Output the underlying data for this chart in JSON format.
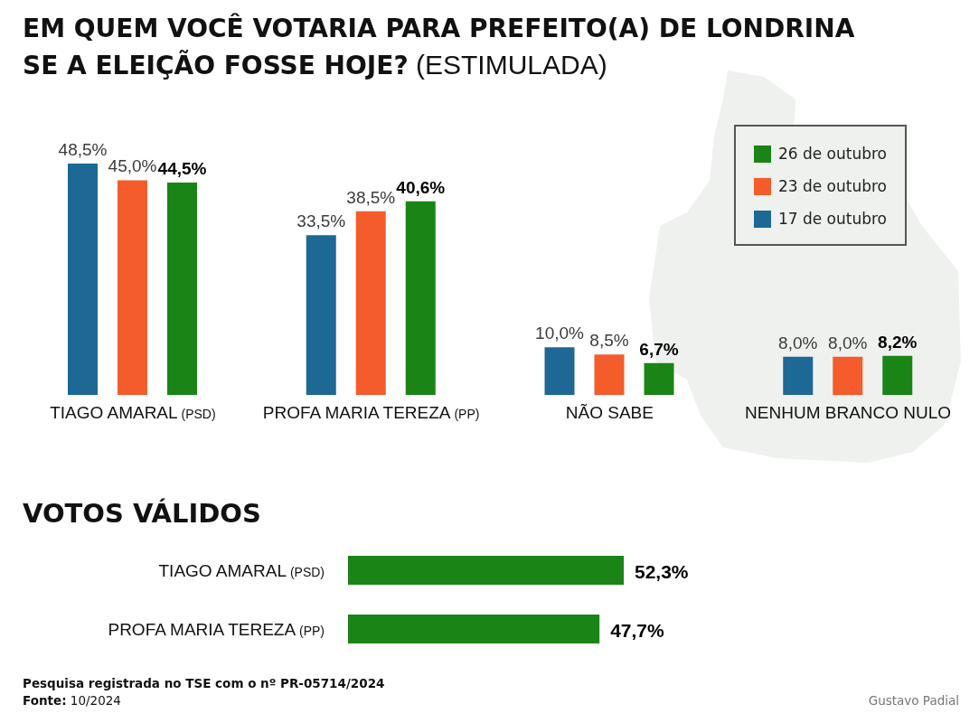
{
  "chart_data": [
    {
      "type": "bar",
      "title": "EM QUEM VOCÊ VOTARIA PARA PREFEITO(A) DE LONDRINA SE A ELEIÇÃO FOSSE HOJE?",
      "subtitle": "(ESTIMULADA)",
      "categories": [
        "TIAGO AMARAL (PSD)",
        "PROFA MARIA TEREZA (PP)",
        "NÃO SABE",
        "NENHUM BRANCO NULO"
      ],
      "series": [
        {
          "name": "17 de outubro",
          "color": "#1d6894",
          "values": [
            48.5,
            33.5,
            10.0,
            8.0
          ],
          "value_labels": [
            "48,5%",
            "33,5%",
            "10,0%",
            "8,0%"
          ]
        },
        {
          "name": "23 de outubro",
          "color": "#f45c2b",
          "values": [
            45.0,
            38.5,
            8.5,
            8.0
          ],
          "value_labels": [
            "45,0%",
            "38,5%",
            "8,5%",
            "8,0%"
          ]
        },
        {
          "name": "26 de outubro",
          "color": "#1a8416",
          "values": [
            44.5,
            40.6,
            6.7,
            8.2
          ],
          "value_labels": [
            "44,5%",
            "40,6%",
            "6,7%",
            "8,2%"
          ]
        }
      ],
      "legend": "top right"
    },
    {
      "type": "bar",
      "orientation": "horizontal",
      "title": "VOTOS VÁLIDOS",
      "categories": [
        "TIAGO AMARAL (PSD)",
        "PROFA MARIA TEREZA (PP)"
      ],
      "values": [
        52.3,
        47.7
      ],
      "color": "#1a8416",
      "value_labels": [
        "52,3%",
        "47,7%"
      ],
      "annotations": [
        "Pesquisa registrada no TSE com o nº PR-05714/2024",
        "Fonte: 10/2024",
        "Gustavo Padial"
      ]
    }
  ]
}
